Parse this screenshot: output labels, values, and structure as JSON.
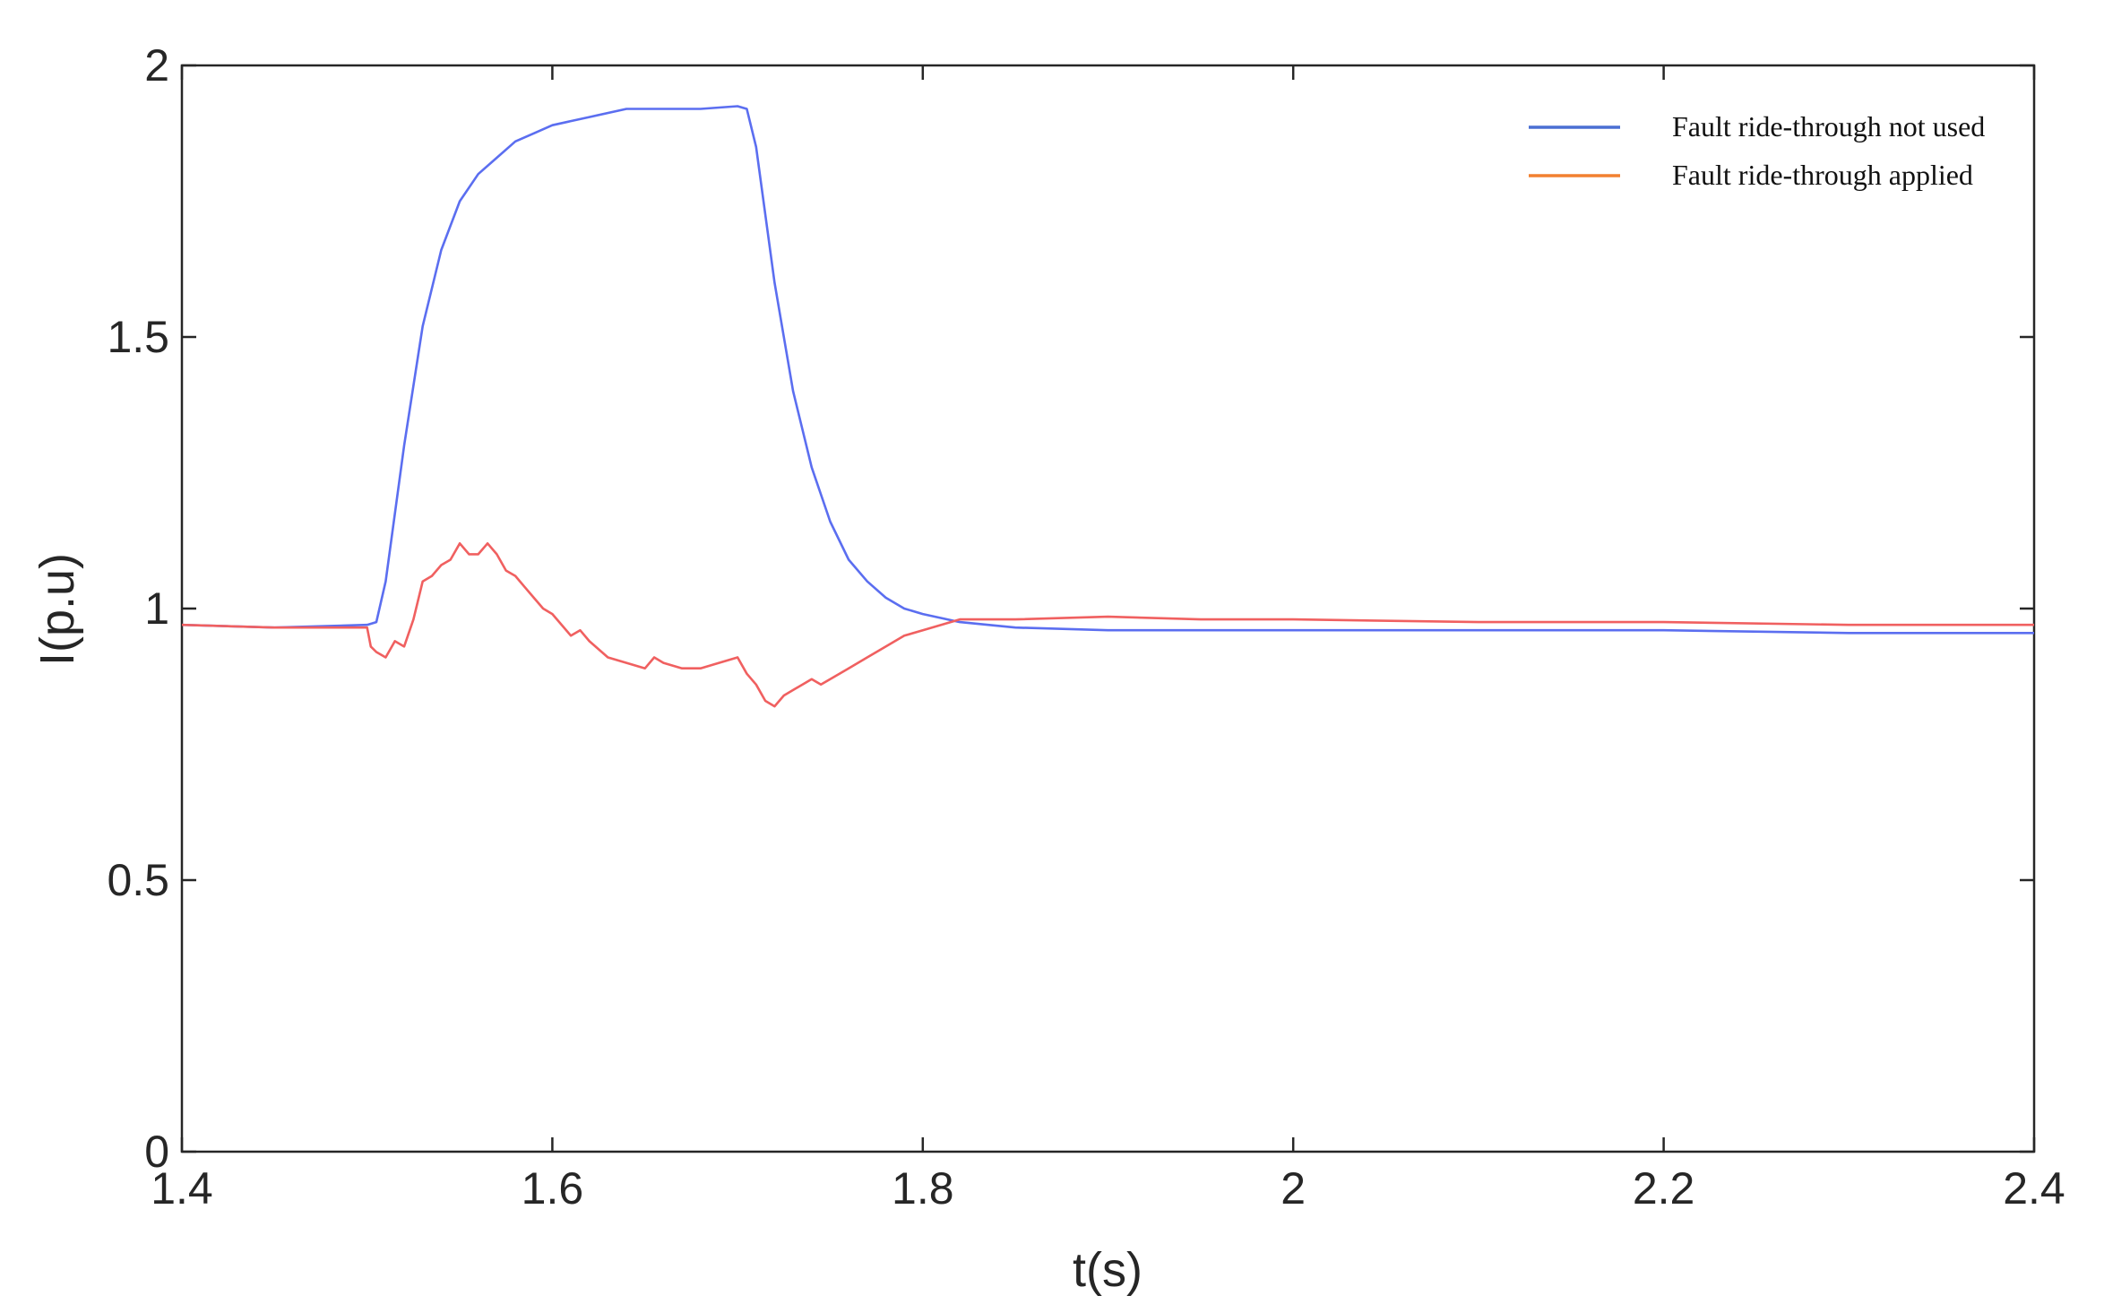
{
  "chart_data": {
    "type": "line",
    "xlabel": "t(s)",
    "ylabel": "I(p.u)",
    "xlim": [
      1.4,
      2.4
    ],
    "ylim": [
      0,
      2
    ],
    "xticks": [
      1.4,
      1.6,
      1.8,
      2,
      2.2,
      2.4
    ],
    "xtick_labels": [
      "1.4",
      "1.6",
      "1.8",
      "2",
      "2.2",
      "2.4"
    ],
    "yticks": [
      0,
      0.5,
      1,
      1.5,
      2
    ],
    "ytick_labels": [
      "0",
      "0.5",
      "1",
      "1.5",
      "2"
    ],
    "grid": false,
    "legend_position": "top-right",
    "series": [
      {
        "name": "Fault ride-through not used",
        "color": "#5b6ef0",
        "legend_color": "#4a6fd3",
        "x": [
          1.4,
          1.45,
          1.5,
          1.505,
          1.51,
          1.52,
          1.53,
          1.54,
          1.55,
          1.56,
          1.57,
          1.58,
          1.59,
          1.6,
          1.62,
          1.64,
          1.66,
          1.68,
          1.7,
          1.705,
          1.71,
          1.72,
          1.73,
          1.74,
          1.75,
          1.76,
          1.77,
          1.78,
          1.79,
          1.8,
          1.82,
          1.85,
          1.9,
          2.0,
          2.1,
          2.2,
          2.3,
          2.4
        ],
        "y": [
          0.97,
          0.965,
          0.97,
          0.975,
          1.05,
          1.3,
          1.52,
          1.66,
          1.75,
          1.8,
          1.83,
          1.86,
          1.875,
          1.89,
          1.905,
          1.92,
          1.92,
          1.92,
          1.925,
          1.92,
          1.85,
          1.6,
          1.4,
          1.26,
          1.16,
          1.09,
          1.05,
          1.02,
          1.0,
          0.99,
          0.975,
          0.965,
          0.96,
          0.96,
          0.96,
          0.96,
          0.955,
          0.955
        ]
      },
      {
        "name": "Fault ride-through applied",
        "color": "#f06060",
        "legend_color": "#f28030",
        "x": [
          1.4,
          1.45,
          1.5,
          1.502,
          1.505,
          1.51,
          1.515,
          1.52,
          1.525,
          1.53,
          1.535,
          1.54,
          1.545,
          1.55,
          1.555,
          1.56,
          1.565,
          1.57,
          1.575,
          1.58,
          1.585,
          1.59,
          1.595,
          1.6,
          1.61,
          1.615,
          1.62,
          1.63,
          1.64,
          1.65,
          1.655,
          1.66,
          1.67,
          1.68,
          1.69,
          1.7,
          1.705,
          1.71,
          1.715,
          1.72,
          1.725,
          1.73,
          1.74,
          1.745,
          1.75,
          1.76,
          1.77,
          1.78,
          1.79,
          1.8,
          1.82,
          1.85,
          1.9,
          1.95,
          2.0,
          2.1,
          2.2,
          2.3,
          2.4
        ],
        "y": [
          0.97,
          0.965,
          0.965,
          0.93,
          0.92,
          0.91,
          0.94,
          0.93,
          0.98,
          1.05,
          1.06,
          1.08,
          1.09,
          1.12,
          1.1,
          1.1,
          1.12,
          1.1,
          1.07,
          1.06,
          1.04,
          1.02,
          1.0,
          0.99,
          0.95,
          0.96,
          0.94,
          0.91,
          0.9,
          0.89,
          0.91,
          0.9,
          0.89,
          0.89,
          0.9,
          0.91,
          0.88,
          0.86,
          0.83,
          0.82,
          0.84,
          0.85,
          0.87,
          0.86,
          0.87,
          0.89,
          0.91,
          0.93,
          0.95,
          0.96,
          0.98,
          0.98,
          0.985,
          0.98,
          0.98,
          0.975,
          0.975,
          0.97,
          0.97
        ]
      }
    ]
  }
}
